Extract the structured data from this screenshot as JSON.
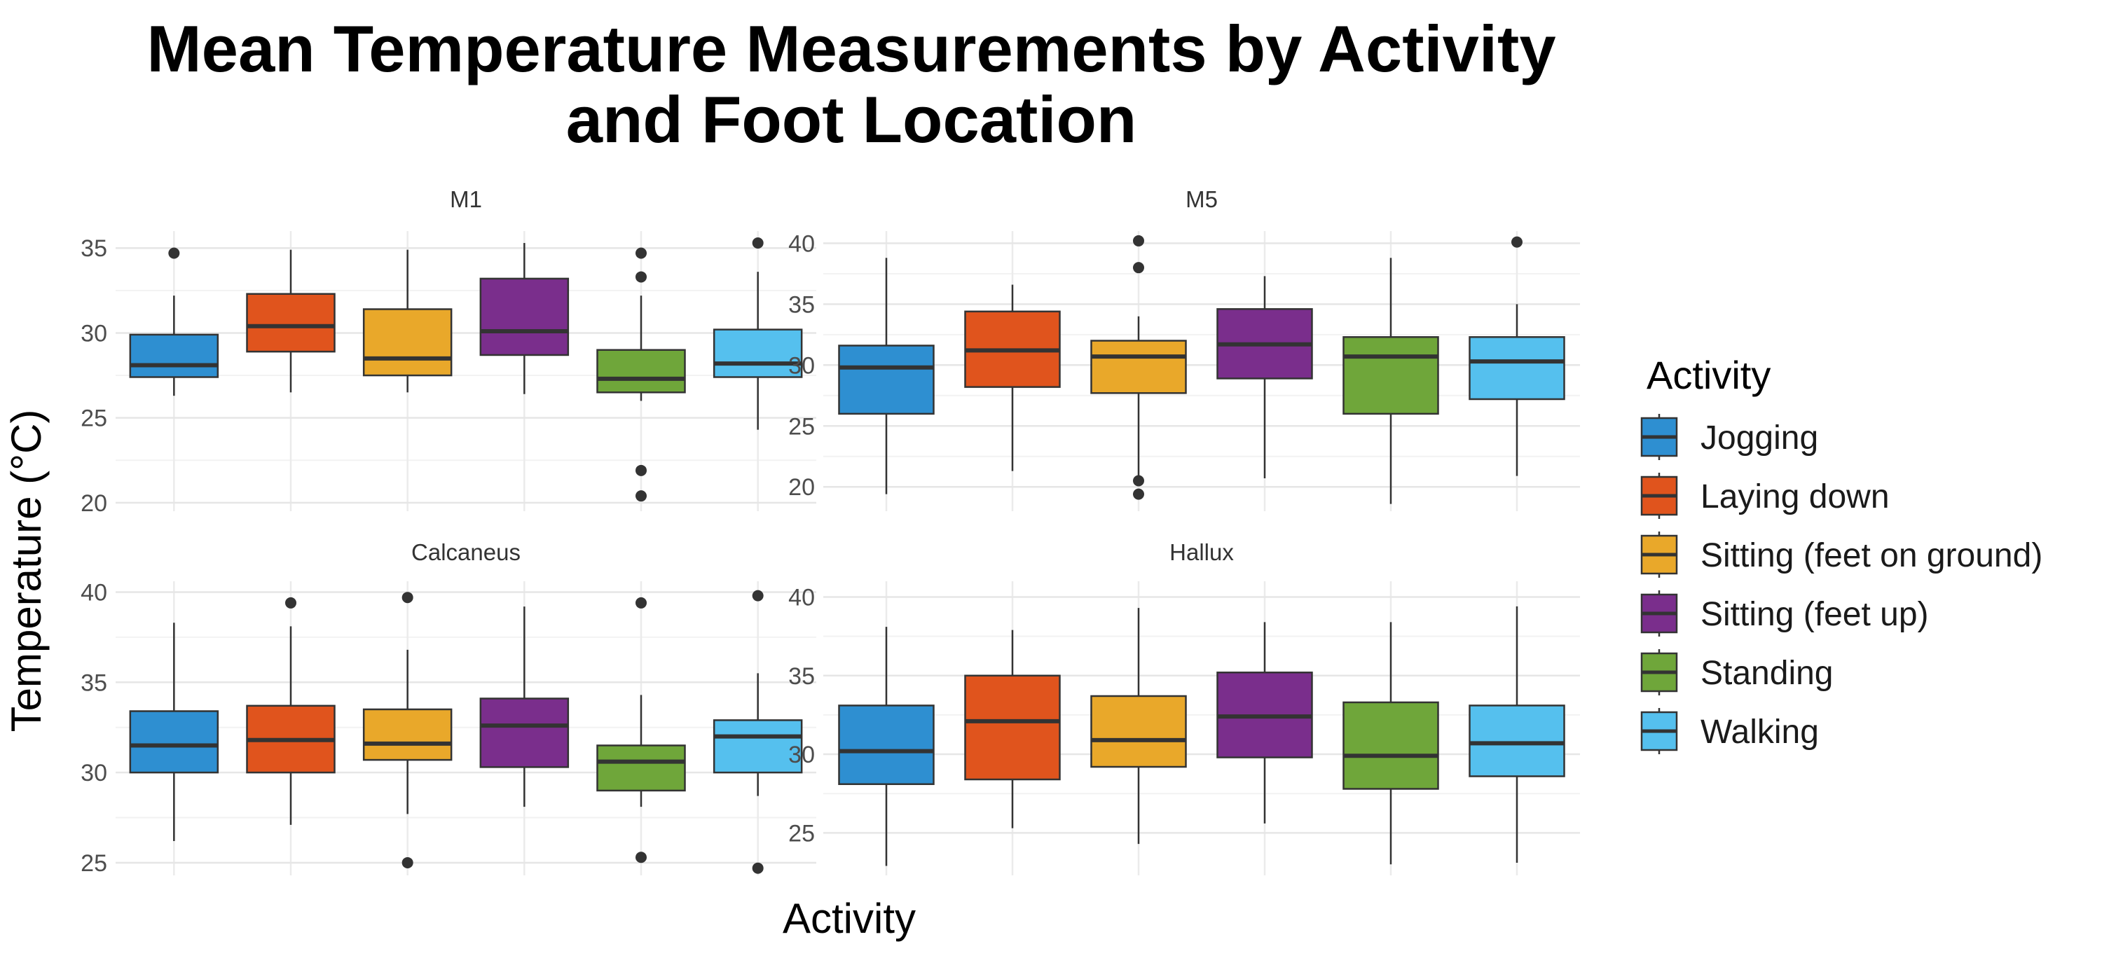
{
  "chart_data": {
    "type": "boxplot",
    "title": "Mean Temperature Measurements by Activity and Foot Location",
    "title_lines": [
      "Mean Temperature Measurements by Activity",
      "and Foot Location"
    ],
    "xlabel": "Activity",
    "ylabel": "Temperature (°C)",
    "legend": {
      "title": "Activity",
      "position": "right",
      "entries": [
        {
          "name": "Jogging",
          "color": "#2E8FD1"
        },
        {
          "name": "Laying down",
          "color": "#E0541D"
        },
        {
          "name": "Sitting (feet on ground)",
          "color": "#E9A82A"
        },
        {
          "name": "Sitting (feet up)",
          "color": "#7A2E8C"
        },
        {
          "name": "Standing",
          "color": "#6FA63A"
        },
        {
          "name": "Walking",
          "color": "#55C0EE"
        }
      ]
    },
    "categories": [
      "Jogging",
      "Laying down",
      "Sitting (feet on ground)",
      "Sitting (feet up)",
      "Standing",
      "Walking"
    ],
    "grid": true,
    "facets": [
      {
        "name": "M1",
        "ylim": [
          19.5,
          36
        ],
        "yticks": [
          20,
          25,
          30,
          35
        ],
        "boxes": [
          {
            "min": 26.3,
            "q1": 27.4,
            "median": 28.1,
            "q3": 29.9,
            "max": 32.2,
            "outliers": [
              34.7
            ]
          },
          {
            "min": 26.5,
            "q1": 28.9,
            "median": 30.4,
            "q3": 32.3,
            "max": 34.9,
            "outliers": []
          },
          {
            "min": 26.5,
            "q1": 27.5,
            "median": 28.5,
            "q3": 31.4,
            "max": 34.9,
            "outliers": []
          },
          {
            "min": 26.4,
            "q1": 28.7,
            "median": 30.1,
            "q3": 33.2,
            "max": 35.3,
            "outliers": []
          },
          {
            "min": 26.0,
            "q1": 26.5,
            "median": 27.3,
            "q3": 29.0,
            "max": 32.2,
            "outliers": [
              34.7,
              33.3,
              21.9,
              20.4
            ]
          },
          {
            "min": 24.3,
            "q1": 27.4,
            "median": 28.2,
            "q3": 30.2,
            "max": 33.6,
            "outliers": [
              35.3
            ]
          }
        ]
      },
      {
        "name": "M5",
        "ylim": [
          18,
          41
        ],
        "yticks": [
          20,
          25,
          30,
          35,
          40
        ],
        "boxes": [
          {
            "min": 19.4,
            "q1": 26.0,
            "median": 29.8,
            "q3": 31.6,
            "max": 38.8,
            "outliers": []
          },
          {
            "min": 21.3,
            "q1": 28.2,
            "median": 31.2,
            "q3": 34.4,
            "max": 36.6,
            "outliers": []
          },
          {
            "min": 20.9,
            "q1": 27.7,
            "median": 30.7,
            "q3": 32.0,
            "max": 34.0,
            "outliers": [
              40.2,
              38.0,
              20.5,
              19.4
            ]
          },
          {
            "min": 20.7,
            "q1": 28.9,
            "median": 31.7,
            "q3": 34.6,
            "max": 37.3,
            "outliers": []
          },
          {
            "min": 18.6,
            "q1": 26.0,
            "median": 30.7,
            "q3": 32.3,
            "max": 38.8,
            "outliers": []
          },
          {
            "min": 20.9,
            "q1": 27.2,
            "median": 30.3,
            "q3": 32.3,
            "max": 35.0,
            "outliers": [
              40.1
            ]
          }
        ]
      },
      {
        "name": "Calcaneus",
        "ylim": [
          24.3,
          40.6
        ],
        "yticks": [
          25,
          30,
          35,
          40
        ],
        "boxes": [
          {
            "min": 26.2,
            "q1": 30.0,
            "median": 31.5,
            "q3": 33.4,
            "max": 38.3,
            "outliers": []
          },
          {
            "min": 27.1,
            "q1": 30.0,
            "median": 31.8,
            "q3": 33.7,
            "max": 38.1,
            "outliers": [
              39.4
            ]
          },
          {
            "min": 27.7,
            "q1": 30.7,
            "median": 31.6,
            "q3": 33.5,
            "max": 36.8,
            "outliers": [
              39.7,
              25.0
            ]
          },
          {
            "min": 28.1,
            "q1": 30.3,
            "median": 32.6,
            "q3": 34.1,
            "max": 39.2,
            "outliers": []
          },
          {
            "min": 28.1,
            "q1": 29.0,
            "median": 30.6,
            "q3": 31.5,
            "max": 34.3,
            "outliers": [
              39.4,
              25.3
            ]
          },
          {
            "min": 28.7,
            "q1": 30.0,
            "median": 32.0,
            "q3": 32.9,
            "max": 35.5,
            "outliers": [
              39.8,
              24.7
            ]
          }
        ]
      },
      {
        "name": "Hallux",
        "ylim": [
          22.3,
          41
        ],
        "yticks": [
          25,
          30,
          35,
          40
        ],
        "boxes": [
          {
            "min": 22.9,
            "q1": 28.1,
            "median": 30.2,
            "q3": 33.1,
            "max": 38.1,
            "outliers": []
          },
          {
            "min": 25.3,
            "q1": 28.4,
            "median": 32.1,
            "q3": 35.0,
            "max": 37.9,
            "outliers": []
          },
          {
            "min": 24.3,
            "q1": 29.2,
            "median": 30.9,
            "q3": 33.7,
            "max": 39.3,
            "outliers": []
          },
          {
            "min": 25.6,
            "q1": 29.8,
            "median": 32.4,
            "q3": 35.2,
            "max": 38.4,
            "outliers": []
          },
          {
            "min": 23.0,
            "q1": 27.8,
            "median": 29.9,
            "q3": 33.3,
            "max": 38.4,
            "outliers": []
          },
          {
            "min": 23.1,
            "q1": 28.6,
            "median": 30.7,
            "q3": 33.1,
            "max": 39.4,
            "outliers": []
          }
        ]
      }
    ]
  }
}
